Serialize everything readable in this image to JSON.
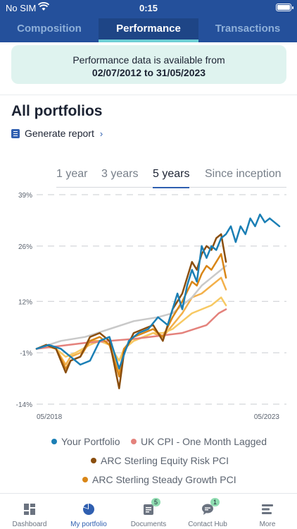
{
  "status_bar": {
    "carrier": "No SIM",
    "time": "0:15"
  },
  "tabs": [
    {
      "label": "Composition"
    },
    {
      "label": "Performance"
    },
    {
      "label": "Transactions"
    }
  ],
  "notice": {
    "line1": "Performance data is available from",
    "line2": "02/07/2012 to 31/05/2023"
  },
  "page_title": "All portfolios",
  "generate_report": "Generate report",
  "periods": [
    {
      "label": "1 year"
    },
    {
      "label": "3 years"
    },
    {
      "label": "5 years",
      "selected": true
    },
    {
      "label": "Since inception"
    }
  ],
  "chart_data": {
    "type": "line",
    "y_ticks": [
      "39%",
      "26%",
      "12%",
      "-1%",
      "-14%"
    ],
    "x_tick_labels": [
      "05/2018",
      "05/2023"
    ],
    "ylim": [
      -14,
      39
    ],
    "grid": "horizontal dashed",
    "series": [
      {
        "name": "Your Portfolio",
        "color": "#1b7fb5",
        "points": [
          [
            0,
            0
          ],
          [
            5,
            1
          ],
          [
            10,
            0
          ],
          [
            14,
            -2
          ],
          [
            18,
            -4
          ],
          [
            22,
            -3
          ],
          [
            26,
            2
          ],
          [
            30,
            3
          ],
          [
            34,
            -5
          ],
          [
            38,
            2
          ],
          [
            42,
            4
          ],
          [
            46,
            5
          ],
          [
            50,
            8
          ],
          [
            54,
            6
          ],
          [
            58,
            14
          ],
          [
            60,
            10
          ],
          [
            62,
            16
          ],
          [
            64,
            20
          ],
          [
            66,
            17
          ],
          [
            68,
            26
          ],
          [
            70,
            23
          ],
          [
            72,
            26
          ],
          [
            74,
            25
          ],
          [
            76,
            28
          ],
          [
            78,
            29
          ],
          [
            80,
            31
          ],
          [
            82,
            27
          ],
          [
            84,
            31
          ],
          [
            86,
            29
          ],
          [
            88,
            33
          ],
          [
            90,
            31
          ],
          [
            92,
            34
          ],
          [
            94,
            32
          ],
          [
            96,
            33
          ],
          [
            98,
            32
          ],
          [
            100,
            31
          ]
        ]
      },
      {
        "name": "UK CPI - One Month Lagged",
        "color": "#e4827c",
        "points": [
          [
            0,
            0
          ],
          [
            20,
            1.5
          ],
          [
            40,
            2.5
          ],
          [
            60,
            4
          ],
          [
            70,
            6
          ],
          [
            75,
            9
          ],
          [
            78,
            10
          ]
        ]
      },
      {
        "name": "ARC Sterling Equity Risk PCI",
        "color": "#8a4e0e",
        "points": [
          [
            0,
            0
          ],
          [
            4,
            1
          ],
          [
            8,
            0
          ],
          [
            12,
            -6
          ],
          [
            14,
            -3
          ],
          [
            18,
            -2
          ],
          [
            22,
            3
          ],
          [
            26,
            4
          ],
          [
            30,
            2
          ],
          [
            34,
            -10
          ],
          [
            36,
            -1
          ],
          [
            40,
            4
          ],
          [
            44,
            5
          ],
          [
            48,
            6
          ],
          [
            52,
            2
          ],
          [
            56,
            10
          ],
          [
            60,
            14
          ],
          [
            64,
            22
          ],
          [
            66,
            20
          ],
          [
            68,
            24
          ],
          [
            70,
            26
          ],
          [
            72,
            25
          ],
          [
            74,
            28
          ],
          [
            76,
            29
          ],
          [
            78,
            22
          ]
        ]
      },
      {
        "name": "ARC Sterling Steady Growth PCI",
        "color": "#d98617",
        "points": [
          [
            0,
            0
          ],
          [
            4,
            1
          ],
          [
            8,
            0
          ],
          [
            12,
            -5
          ],
          [
            14,
            -3
          ],
          [
            18,
            -2
          ],
          [
            22,
            2
          ],
          [
            26,
            3
          ],
          [
            30,
            1
          ],
          [
            34,
            -7
          ],
          [
            36,
            0
          ],
          [
            40,
            3
          ],
          [
            44,
            4
          ],
          [
            48,
            5
          ],
          [
            52,
            3
          ],
          [
            56,
            8
          ],
          [
            60,
            12
          ],
          [
            64,
            17
          ],
          [
            66,
            16
          ],
          [
            68,
            19
          ],
          [
            70,
            21
          ],
          [
            72,
            20
          ],
          [
            74,
            22
          ],
          [
            76,
            24
          ],
          [
            78,
            18
          ]
        ]
      }
    ],
    "unlabeled_series": [
      {
        "color": "#f3b04a",
        "points": [
          [
            0,
            0
          ],
          [
            4,
            1
          ],
          [
            8,
            0
          ],
          [
            12,
            -4
          ],
          [
            14,
            -2
          ],
          [
            18,
            -1
          ],
          [
            22,
            2
          ],
          [
            26,
            2
          ],
          [
            30,
            1
          ],
          [
            34,
            -6
          ],
          [
            36,
            0
          ],
          [
            40,
            2
          ],
          [
            44,
            3
          ],
          [
            48,
            4
          ],
          [
            52,
            3
          ],
          [
            56,
            6
          ],
          [
            60,
            9
          ],
          [
            64,
            13
          ],
          [
            68,
            14
          ],
          [
            72,
            16
          ],
          [
            76,
            18
          ],
          [
            78,
            15
          ]
        ]
      },
      {
        "color": "#f7c963",
        "points": [
          [
            0,
            0
          ],
          [
            4,
            0.5
          ],
          [
            8,
            0
          ],
          [
            12,
            -2
          ],
          [
            16,
            -1
          ],
          [
            22,
            1
          ],
          [
            26,
            2
          ],
          [
            30,
            1
          ],
          [
            34,
            -3
          ],
          [
            36,
            0
          ],
          [
            40,
            2
          ],
          [
            44,
            3
          ],
          [
            48,
            4
          ],
          [
            52,
            4
          ],
          [
            56,
            5
          ],
          [
            60,
            7
          ],
          [
            64,
            9
          ],
          [
            68,
            10
          ],
          [
            72,
            11
          ],
          [
            76,
            13
          ],
          [
            78,
            11
          ]
        ]
      },
      {
        "color": "#c9c9c9",
        "points": [
          [
            0,
            0
          ],
          [
            10,
            2
          ],
          [
            20,
            3
          ],
          [
            30,
            5
          ],
          [
            40,
            7
          ],
          [
            50,
            8
          ],
          [
            56,
            9
          ],
          [
            60,
            11
          ],
          [
            64,
            13
          ],
          [
            68,
            16
          ],
          [
            72,
            18
          ],
          [
            76,
            20
          ],
          [
            78,
            21
          ]
        ]
      }
    ]
  },
  "legend": [
    {
      "label": "Your Portfolio",
      "color": "#1b7fb5"
    },
    {
      "label": "UK CPI - One Month Lagged",
      "color": "#e4827c"
    },
    {
      "label": "ARC Sterling Equity Risk PCI",
      "color": "#8a4e0e"
    },
    {
      "label": "ARC Sterling Steady Growth PCI",
      "color": "#d98617"
    }
  ],
  "bottom_nav": [
    {
      "label": "Dashboard",
      "icon": "dashboard-icon"
    },
    {
      "label": "My portfolio",
      "icon": "pie-chart-icon",
      "active": true
    },
    {
      "label": "Documents",
      "icon": "documents-icon",
      "badge": "5"
    },
    {
      "label": "Contact Hub",
      "icon": "chat-icon",
      "badge": "1"
    },
    {
      "label": "More",
      "icon": "menu-icon"
    }
  ]
}
